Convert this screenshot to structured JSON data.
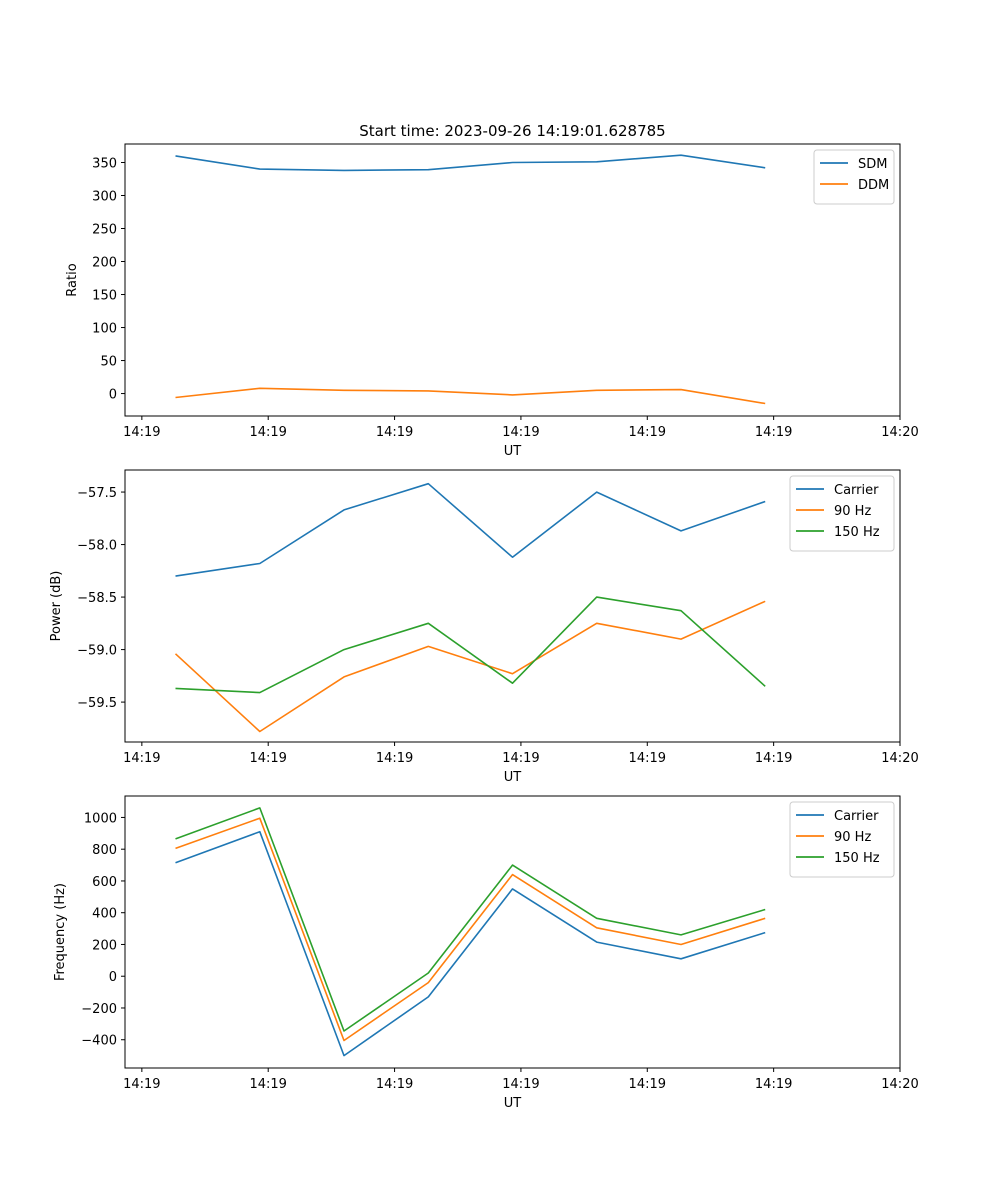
{
  "chart_data": [
    {
      "type": "line",
      "title": "Start time: 2023-09-26 14:19:01.628785",
      "xlabel": "UT",
      "ylabel": "Ratio",
      "xlim": [
        -0.6,
        8.6
      ],
      "ylim": [
        -34,
        378
      ],
      "x": [
        0,
        1,
        2,
        3,
        4,
        5,
        6,
        7
      ],
      "xticks": [
        -0.4,
        1.1,
        2.6,
        4.1,
        5.6,
        7.1,
        8.6
      ],
      "xtick_labels": [
        "14:19",
        "14:19",
        "14:19",
        "14:19",
        "14:19",
        "14:19",
        "14:20"
      ],
      "yticks": [
        0,
        50,
        100,
        150,
        200,
        250,
        300,
        350
      ],
      "ytick_labels": [
        "0",
        "50",
        "100",
        "150",
        "200",
        "250",
        "300",
        "350"
      ],
      "grid": false,
      "legend_position": "top-right",
      "series": [
        {
          "name": "SDM",
          "color": "#1f77b4",
          "values": [
            360,
            340,
            338,
            339,
            350,
            351,
            361,
            342
          ]
        },
        {
          "name": "DDM",
          "color": "#ff7f0e",
          "values": [
            -6,
            8,
            5,
            4,
            -2,
            5,
            6,
            -15
          ]
        }
      ]
    },
    {
      "type": "line",
      "title": "",
      "xlabel": "UT",
      "ylabel": "Power (dB)",
      "xlim": [
        -0.6,
        8.6
      ],
      "ylim": [
        -59.88,
        -57.29
      ],
      "x": [
        0,
        1,
        2,
        3,
        4,
        5,
        6,
        7
      ],
      "xticks": [
        -0.4,
        1.1,
        2.6,
        4.1,
        5.6,
        7.1,
        8.6
      ],
      "xtick_labels": [
        "14:19",
        "14:19",
        "14:19",
        "14:19",
        "14:19",
        "14:19",
        "14:20"
      ],
      "yticks": [
        -59.5,
        -59.0,
        -58.5,
        -58.0,
        -57.5
      ],
      "ytick_labels": [
        "−59.5",
        "−59.0",
        "−58.5",
        "−58.0",
        "−57.5"
      ],
      "grid": false,
      "legend_position": "top-right",
      "series": [
        {
          "name": "Carrier",
          "color": "#1f77b4",
          "values": [
            -58.3,
            -58.18,
            -57.67,
            -57.42,
            -58.12,
            -57.5,
            -57.87,
            -57.59
          ]
        },
        {
          "name": "90 Hz",
          "color": "#ff7f0e",
          "values": [
            -59.04,
            -59.78,
            -59.26,
            -58.97,
            -59.23,
            -58.75,
            -58.9,
            -58.54
          ]
        },
        {
          "name": "150 Hz",
          "color": "#2ca02c",
          "values": [
            -59.37,
            -59.41,
            -59.0,
            -58.75,
            -59.32,
            -58.5,
            -58.63,
            -59.35
          ]
        }
      ]
    },
    {
      "type": "line",
      "title": "",
      "xlabel": "UT",
      "ylabel": "Frequency (Hz)",
      "xlim": [
        -0.6,
        8.6
      ],
      "ylim": [
        -578,
        1135
      ],
      "x": [
        0,
        1,
        2,
        3,
        4,
        5,
        6,
        7
      ],
      "xticks": [
        -0.4,
        1.1,
        2.6,
        4.1,
        5.6,
        7.1,
        8.6
      ],
      "xtick_labels": [
        "14:19",
        "14:19",
        "14:19",
        "14:19",
        "14:19",
        "14:19",
        "14:20"
      ],
      "yticks": [
        -400,
        -200,
        0,
        200,
        400,
        600,
        800,
        1000
      ],
      "ytick_labels": [
        "−400",
        "−200",
        "0",
        "200",
        "400",
        "600",
        "800",
        "1000"
      ],
      "grid": false,
      "legend_position": "top-right",
      "series": [
        {
          "name": "Carrier",
          "color": "#1f77b4",
          "values": [
            715,
            910,
            -500,
            -130,
            550,
            215,
            110,
            275
          ]
        },
        {
          "name": "90 Hz",
          "color": "#ff7f0e",
          "values": [
            805,
            995,
            -405,
            -40,
            640,
            305,
            200,
            365
          ]
        },
        {
          "name": "150 Hz",
          "color": "#2ca02c",
          "values": [
            865,
            1060,
            -345,
            20,
            700,
            365,
            260,
            420
          ]
        }
      ]
    }
  ]
}
